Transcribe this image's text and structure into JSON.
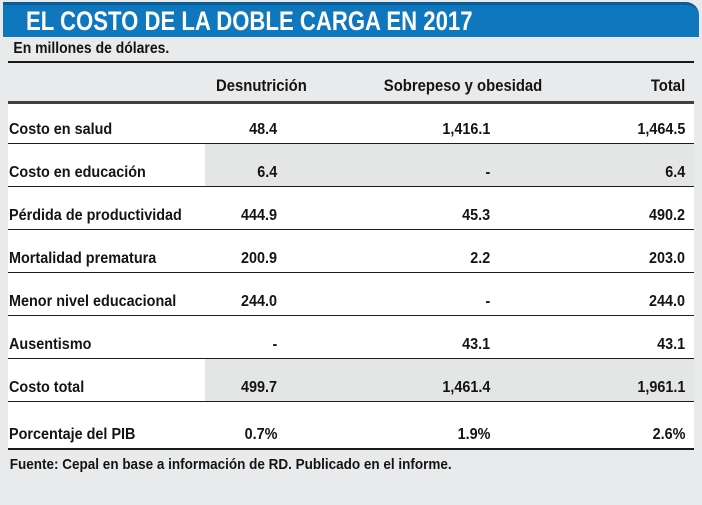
{
  "chart_data": {
    "type": "table",
    "title": "EL COSTO DE LA DOBLE CARGA EN 2017",
    "unit_note": "En millones de dólares.",
    "columns": {
      "c1": "Desnutrición",
      "c2": "Sobrepeso y obesidad",
      "c3": "Total"
    },
    "rows": [
      {
        "label": "Costo en salud",
        "c1": "48.4",
        "c2": "1,416.1",
        "c3": "1,464.5"
      },
      {
        "label": "Costo en educación",
        "c1": "6.4",
        "c2": "-",
        "c3": "6.4"
      },
      {
        "label": "Pérdida de productividad",
        "c1": "444.9",
        "c2": "45.3",
        "c3": "490.2"
      },
      {
        "label": "Mortalidad prematura",
        "c1": "200.9",
        "c2": "2.2",
        "c3": "203.0"
      },
      {
        "label": "Menor nivel educacional",
        "c1": "244.0",
        "c2": "-",
        "c3": "244.0"
      },
      {
        "label": "Ausentismo",
        "c1": "-",
        "c2": "43.1",
        "c3": "43.1"
      },
      {
        "label": "Costo total",
        "c1": "499.7",
        "c2": "1,461.4",
        "c3": "1,961.1"
      },
      {
        "label": "Porcentaje del PIB",
        "c1": "0.7%",
        "c2": "1.9%",
        "c3": "2.6%"
      }
    ],
    "highlight_rows": [
      1,
      6
    ],
    "source": "Fuente: Cepal en base a información de RD. Publicado en el informe.",
    "layout": {
      "legend": "none",
      "grid": "horizontal-rules"
    }
  },
  "colors": {
    "banner_blue": "#0e77bd",
    "banner_blue_dark": "#0a5c95",
    "page_bg": "#e9eaeb",
    "body_bg": "#ffffff",
    "highlight_gray": "#e4e5e5",
    "rule_dark": "#1b1b1b",
    "header_rule": "#404040",
    "title_text": "#ffffff",
    "text": "#141414"
  }
}
